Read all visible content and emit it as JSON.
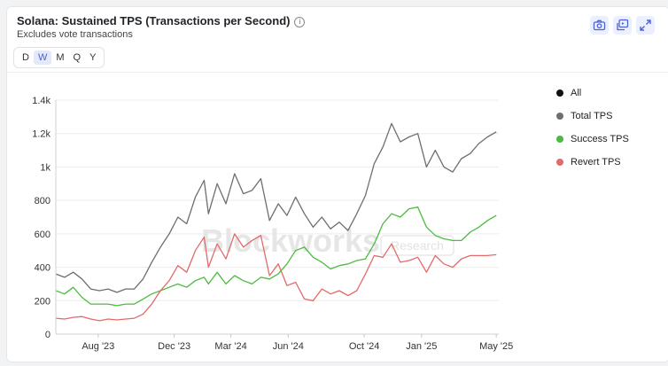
{
  "header": {
    "title": "Solana: Sustained TPS (Transactions per Second)",
    "subtitle": "Excludes vote transactions"
  },
  "timeframes": [
    {
      "label": "D"
    },
    {
      "label": "W",
      "active": true
    },
    {
      "label": "M"
    },
    {
      "label": "Q"
    },
    {
      "label": "Y"
    }
  ],
  "toolbar": {
    "screenshot_icon": "camera-icon",
    "embed_icon": "embed-icon",
    "expand_icon": "expand-icon"
  },
  "watermark": {
    "brand": "Blockworks",
    "tag": "Research"
  },
  "legend": [
    {
      "label": "All",
      "color": "#111111"
    },
    {
      "label": "Total TPS",
      "color": "#6e6e6e"
    },
    {
      "label": "Success TPS",
      "color": "#4cbb3f"
    },
    {
      "label": "Revert TPS",
      "color": "#e36a6a"
    }
  ],
  "chart_data": {
    "type": "line",
    "title": "Solana: Sustained TPS (Transactions per Second)",
    "subtitle": "Excludes vote transactions",
    "xlabel": "",
    "ylabel": "",
    "ylim": [
      0,
      1400
    ],
    "y_ticks": [
      0,
      200,
      400,
      600,
      800,
      1000,
      1200,
      1400
    ],
    "y_tick_labels": [
      "0",
      "200",
      "400",
      "600",
      "800",
      "1k",
      "1.2k",
      "1.4k"
    ],
    "xlim": [
      "2023-05-25",
      "2025-05-05"
    ],
    "x_ticks": [
      "2023-08-01",
      "2023-12-01",
      "2024-03-01",
      "2024-06-01",
      "2024-10-01",
      "2025-01-01",
      "2025-05-01"
    ],
    "x_tick_labels": [
      "Aug '23",
      "Dec '23",
      "Mar '24",
      "Jun '24",
      "Oct '24",
      "Jan '25",
      "May '25"
    ],
    "grid": "horizontal",
    "legend_position": "right",
    "series": [
      {
        "name": "Total TPS",
        "color": "#6e6e6e",
        "points": [
          [
            "2023-05-25",
            360
          ],
          [
            "2023-06-08",
            340
          ],
          [
            "2023-06-22",
            370
          ],
          [
            "2023-07-06",
            330
          ],
          [
            "2023-07-20",
            270
          ],
          [
            "2023-08-03",
            260
          ],
          [
            "2023-08-17",
            270
          ],
          [
            "2023-08-31",
            250
          ],
          [
            "2023-09-14",
            270
          ],
          [
            "2023-09-28",
            270
          ],
          [
            "2023-10-12",
            330
          ],
          [
            "2023-10-26",
            430
          ],
          [
            "2023-11-09",
            520
          ],
          [
            "2023-11-23",
            600
          ],
          [
            "2023-12-07",
            700
          ],
          [
            "2023-12-21",
            660
          ],
          [
            "2024-01-04",
            820
          ],
          [
            "2024-01-18",
            920
          ],
          [
            "2024-01-25",
            720
          ],
          [
            "2024-02-08",
            900
          ],
          [
            "2024-02-22",
            780
          ],
          [
            "2024-03-07",
            960
          ],
          [
            "2024-03-21",
            840
          ],
          [
            "2024-04-04",
            860
          ],
          [
            "2024-04-18",
            930
          ],
          [
            "2024-05-02",
            680
          ],
          [
            "2024-05-16",
            780
          ],
          [
            "2024-05-30",
            710
          ],
          [
            "2024-06-13",
            820
          ],
          [
            "2024-06-27",
            720
          ],
          [
            "2024-07-11",
            640
          ],
          [
            "2024-07-25",
            700
          ],
          [
            "2024-08-08",
            630
          ],
          [
            "2024-08-22",
            670
          ],
          [
            "2024-09-05",
            620
          ],
          [
            "2024-09-19",
            720
          ],
          [
            "2024-10-03",
            830
          ],
          [
            "2024-10-17",
            1020
          ],
          [
            "2024-10-31",
            1120
          ],
          [
            "2024-11-14",
            1260
          ],
          [
            "2024-11-28",
            1150
          ],
          [
            "2024-12-12",
            1180
          ],
          [
            "2024-12-26",
            1200
          ],
          [
            "2025-01-09",
            1000
          ],
          [
            "2025-01-23",
            1100
          ],
          [
            "2025-02-06",
            1000
          ],
          [
            "2025-02-20",
            970
          ],
          [
            "2025-03-06",
            1050
          ],
          [
            "2025-03-20",
            1080
          ],
          [
            "2025-04-03",
            1140
          ],
          [
            "2025-04-17",
            1180
          ],
          [
            "2025-05-01",
            1210
          ]
        ]
      },
      {
        "name": "Success TPS",
        "color": "#4cbb3f",
        "points": [
          [
            "2023-05-25",
            260
          ],
          [
            "2023-06-08",
            240
          ],
          [
            "2023-06-22",
            280
          ],
          [
            "2023-07-06",
            220
          ],
          [
            "2023-07-20",
            180
          ],
          [
            "2023-08-03",
            180
          ],
          [
            "2023-08-17",
            180
          ],
          [
            "2023-08-31",
            170
          ],
          [
            "2023-09-14",
            180
          ],
          [
            "2023-09-28",
            180
          ],
          [
            "2023-10-12",
            210
          ],
          [
            "2023-10-26",
            240
          ],
          [
            "2023-11-09",
            260
          ],
          [
            "2023-11-23",
            280
          ],
          [
            "2023-12-07",
            300
          ],
          [
            "2023-12-21",
            280
          ],
          [
            "2024-01-04",
            320
          ],
          [
            "2024-01-18",
            340
          ],
          [
            "2024-01-25",
            300
          ],
          [
            "2024-02-08",
            370
          ],
          [
            "2024-02-22",
            300
          ],
          [
            "2024-03-07",
            350
          ],
          [
            "2024-03-21",
            320
          ],
          [
            "2024-04-04",
            300
          ],
          [
            "2024-04-18",
            340
          ],
          [
            "2024-05-02",
            330
          ],
          [
            "2024-05-16",
            360
          ],
          [
            "2024-05-30",
            420
          ],
          [
            "2024-06-13",
            500
          ],
          [
            "2024-06-27",
            520
          ],
          [
            "2024-07-11",
            460
          ],
          [
            "2024-07-25",
            430
          ],
          [
            "2024-08-08",
            390
          ],
          [
            "2024-08-22",
            410
          ],
          [
            "2024-09-05",
            420
          ],
          [
            "2024-09-19",
            440
          ],
          [
            "2024-10-03",
            450
          ],
          [
            "2024-10-17",
            540
          ],
          [
            "2024-10-31",
            660
          ],
          [
            "2024-11-14",
            720
          ],
          [
            "2024-11-28",
            700
          ],
          [
            "2024-12-12",
            750
          ],
          [
            "2024-12-26",
            760
          ],
          [
            "2025-01-09",
            640
          ],
          [
            "2025-01-23",
            590
          ],
          [
            "2025-02-06",
            570
          ],
          [
            "2025-02-20",
            560
          ],
          [
            "2025-03-06",
            560
          ],
          [
            "2025-03-20",
            610
          ],
          [
            "2025-04-03",
            640
          ],
          [
            "2025-04-17",
            680
          ],
          [
            "2025-05-01",
            710
          ]
        ]
      },
      {
        "name": "Revert TPS",
        "color": "#e36a6a",
        "points": [
          [
            "2023-05-25",
            95
          ],
          [
            "2023-06-08",
            90
          ],
          [
            "2023-06-22",
            100
          ],
          [
            "2023-07-06",
            105
          ],
          [
            "2023-07-20",
            90
          ],
          [
            "2023-08-03",
            80
          ],
          [
            "2023-08-17",
            90
          ],
          [
            "2023-08-31",
            85
          ],
          [
            "2023-09-14",
            90
          ],
          [
            "2023-09-28",
            95
          ],
          [
            "2023-10-12",
            120
          ],
          [
            "2023-10-26",
            180
          ],
          [
            "2023-11-09",
            260
          ],
          [
            "2023-11-23",
            320
          ],
          [
            "2023-12-07",
            410
          ],
          [
            "2023-12-21",
            370
          ],
          [
            "2024-01-04",
            500
          ],
          [
            "2024-01-18",
            580
          ],
          [
            "2024-01-25",
            400
          ],
          [
            "2024-02-08",
            540
          ],
          [
            "2024-02-22",
            450
          ],
          [
            "2024-03-07",
            600
          ],
          [
            "2024-03-21",
            520
          ],
          [
            "2024-04-04",
            560
          ],
          [
            "2024-04-18",
            590
          ],
          [
            "2024-05-02",
            350
          ],
          [
            "2024-05-16",
            420
          ],
          [
            "2024-05-30",
            290
          ],
          [
            "2024-06-13",
            310
          ],
          [
            "2024-06-27",
            210
          ],
          [
            "2024-07-11",
            200
          ],
          [
            "2024-07-25",
            270
          ],
          [
            "2024-08-08",
            240
          ],
          [
            "2024-08-22",
            260
          ],
          [
            "2024-09-05",
            230
          ],
          [
            "2024-09-19",
            260
          ],
          [
            "2024-10-03",
            360
          ],
          [
            "2024-10-17",
            470
          ],
          [
            "2024-10-31",
            460
          ],
          [
            "2024-11-14",
            540
          ],
          [
            "2024-11-28",
            430
          ],
          [
            "2024-12-12",
            440
          ],
          [
            "2024-12-26",
            460
          ],
          [
            "2025-01-09",
            370
          ],
          [
            "2025-01-23",
            470
          ],
          [
            "2025-02-06",
            420
          ],
          [
            "2025-02-20",
            400
          ],
          [
            "2025-03-06",
            450
          ],
          [
            "2025-03-20",
            470
          ],
          [
            "2025-04-03",
            470
          ],
          [
            "2025-04-17",
            470
          ],
          [
            "2025-05-01",
            475
          ]
        ]
      }
    ]
  }
}
